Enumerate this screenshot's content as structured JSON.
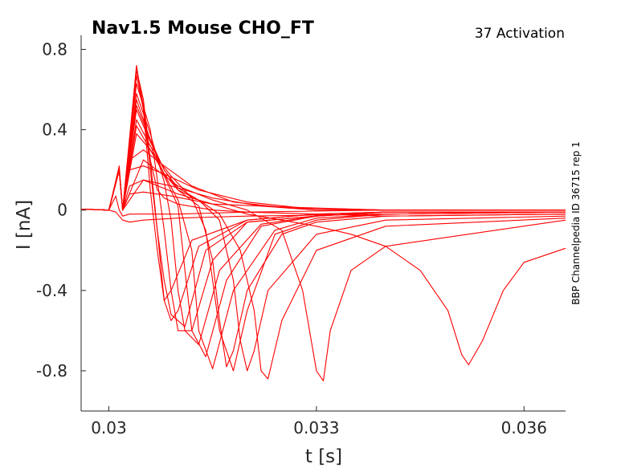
{
  "chart_data": {
    "type": "line",
    "title": "Nav1.5  Mouse  CHO_FT",
    "subtitle": "37  Activation",
    "side_note": "BBP Channelpedia ID 36715 rep 1",
    "xlabel": "t [s]",
    "ylabel": "I [nA]",
    "xlim": [
      0.0296,
      0.0366
    ],
    "ylim": [
      -1.0,
      0.87
    ],
    "xticks": [
      0.03,
      0.033,
      0.036
    ],
    "xtick_labels": [
      "0.03",
      "0.033",
      "0.036"
    ],
    "yticks": [
      0.8,
      0.4,
      0,
      -0.4,
      -0.8
    ],
    "ytick_labels": [
      "0.8",
      "0.4",
      "0",
      "-0.4",
      "-0.8"
    ],
    "series_color": "#ff0000",
    "grid": false,
    "series": [
      {
        "x": [
          0.0296,
          0.03,
          0.0301,
          0.03015,
          0.0302,
          0.0303,
          0.0305,
          0.031,
          0.032,
          0.034,
          0.0366
        ],
        "y": [
          0.005,
          0.0,
          -0.01,
          -0.03,
          -0.05,
          -0.06,
          -0.05,
          -0.04,
          -0.03,
          -0.02,
          -0.01
        ]
      },
      {
        "x": [
          0.0296,
          0.03,
          0.0301,
          0.03015,
          0.0302,
          0.0303,
          0.0305,
          0.031,
          0.032,
          0.034,
          0.0366
        ],
        "y": [
          0.005,
          0.0,
          0.07,
          0.0,
          -0.03,
          -0.02,
          -0.02,
          -0.02,
          -0.01,
          0.0,
          0.0
        ]
      },
      {
        "x": [
          0.0296,
          0.03,
          0.03015,
          0.0302,
          0.0303,
          0.0305,
          0.0309,
          0.0315,
          0.0322,
          0.033,
          0.034,
          0.0366
        ],
        "y": [
          0.005,
          0.0,
          0.2,
          0.0,
          0.08,
          0.09,
          0.07,
          0.03,
          0.02,
          0.01,
          0.0,
          0.0
        ]
      },
      {
        "x": [
          0.0296,
          0.03,
          0.03015,
          0.0302,
          0.0303,
          0.0305,
          0.0309,
          0.0315,
          0.0322,
          0.033,
          0.034,
          0.0366
        ],
        "y": [
          0.005,
          0.0,
          0.22,
          0.0,
          0.12,
          0.15,
          0.12,
          0.06,
          0.02,
          0.0,
          0.0,
          0.0
        ]
      },
      {
        "x": [
          0.0296,
          0.03,
          0.03015,
          0.0302,
          0.0303,
          0.0305,
          0.0308,
          0.0313,
          0.032,
          0.0328,
          0.034,
          0.0366
        ],
        "y": [
          0.005,
          0.0,
          0.2,
          0.0,
          0.2,
          0.22,
          0.18,
          0.1,
          0.04,
          0.01,
          0.0,
          0.0
        ]
      },
      {
        "x": [
          0.0296,
          0.03,
          0.03015,
          0.0302,
          0.0303,
          0.0305,
          0.0308,
          0.0312,
          0.0318,
          0.0326,
          0.034,
          0.0366
        ],
        "y": [
          0.005,
          0.0,
          0.2,
          0.0,
          0.25,
          0.3,
          0.22,
          0.12,
          0.04,
          0.01,
          0.0,
          0.0
        ]
      },
      {
        "x": [
          0.0296,
          0.03,
          0.03015,
          0.0302,
          0.0304,
          0.0306,
          0.0309,
          0.0312,
          0.0314,
          0.0316,
          0.0318,
          0.032,
          0.0324,
          0.033,
          0.034,
          0.0366
        ],
        "y": [
          0.005,
          0.0,
          0.2,
          0.0,
          0.38,
          0.3,
          0.17,
          0.06,
          -0.1,
          -0.6,
          -0.8,
          -0.5,
          -0.12,
          -0.05,
          -0.02,
          -0.01
        ]
      },
      {
        "x": [
          0.0296,
          0.03,
          0.03015,
          0.0302,
          0.0304,
          0.0306,
          0.0308,
          0.031,
          0.0312,
          0.0313,
          0.0315,
          0.0318,
          0.0324,
          0.033,
          0.034,
          0.0366
        ],
        "y": [
          0.005,
          0.0,
          0.2,
          0.0,
          0.45,
          0.32,
          0.18,
          0.05,
          -0.2,
          -0.6,
          -0.79,
          -0.4,
          -0.1,
          -0.04,
          -0.02,
          -0.01
        ]
      },
      {
        "x": [
          0.0296,
          0.03,
          0.03015,
          0.0302,
          0.0304,
          0.0306,
          0.0308,
          0.031,
          0.0311,
          0.0312,
          0.0314,
          0.0317,
          0.0322,
          0.033,
          0.034,
          0.0366
        ],
        "y": [
          0.005,
          0.0,
          0.2,
          0.0,
          0.52,
          0.35,
          0.17,
          0.02,
          -0.3,
          -0.6,
          -0.73,
          -0.35,
          -0.08,
          -0.03,
          -0.01,
          -0.01
        ]
      },
      {
        "x": [
          0.0296,
          0.03,
          0.03015,
          0.0302,
          0.0304,
          0.0306,
          0.0308,
          0.0309,
          0.031,
          0.0311,
          0.0313,
          0.0316,
          0.0322,
          0.033,
          0.034,
          0.0366
        ],
        "y": [
          0.005,
          0.0,
          0.2,
          0.0,
          0.58,
          0.38,
          0.14,
          -0.05,
          -0.4,
          -0.6,
          -0.67,
          -0.3,
          -0.07,
          -0.03,
          -0.01,
          -0.01
        ]
      },
      {
        "x": [
          0.0296,
          0.03,
          0.03015,
          0.0302,
          0.0304,
          0.0306,
          0.0307,
          0.0308,
          0.0309,
          0.031,
          0.0312,
          0.0315,
          0.032,
          0.033,
          0.034,
          0.0366
        ],
        "y": [
          0.005,
          0.0,
          0.2,
          0.0,
          0.63,
          0.4,
          0.15,
          -0.1,
          -0.4,
          -0.6,
          -0.6,
          -0.25,
          -0.06,
          -0.03,
          -0.01,
          -0.01
        ]
      },
      {
        "x": [
          0.0296,
          0.03,
          0.03015,
          0.0302,
          0.0304,
          0.0305,
          0.0306,
          0.0307,
          0.0308,
          0.0309,
          0.0311,
          0.0314,
          0.032,
          0.033,
          0.034,
          0.0366
        ],
        "y": [
          0.005,
          0.0,
          0.2,
          0.0,
          0.67,
          0.5,
          0.25,
          -0.1,
          -0.35,
          -0.52,
          -0.58,
          -0.2,
          -0.06,
          -0.03,
          -0.01,
          -0.01
        ]
      },
      {
        "x": [
          0.0296,
          0.03,
          0.03015,
          0.0302,
          0.0304,
          0.0305,
          0.0306,
          0.0307,
          0.0308,
          0.0309,
          0.031,
          0.0313,
          0.032,
          0.033,
          0.034,
          0.0366
        ],
        "y": [
          0.005,
          0.0,
          0.2,
          0.0,
          0.7,
          0.52,
          0.2,
          -0.1,
          -0.45,
          -0.55,
          -0.5,
          -0.18,
          -0.05,
          -0.02,
          -0.01,
          -0.01
        ]
      },
      {
        "x": [
          0.0296,
          0.03,
          0.03015,
          0.0302,
          0.0304,
          0.0305,
          0.0306,
          0.0307,
          0.0308,
          0.0309,
          0.0312,
          0.032,
          0.033,
          0.034,
          0.0366
        ],
        "y": [
          0.005,
          0.0,
          0.2,
          0.0,
          0.72,
          0.5,
          0.1,
          -0.2,
          -0.45,
          -0.4,
          -0.15,
          -0.05,
          -0.02,
          -0.01,
          -0.01
        ]
      },
      {
        "x": [
          0.0296,
          0.03,
          0.03015,
          0.0302,
          0.0304,
          0.0305,
          0.0306,
          0.0307,
          0.0308,
          0.031,
          0.0315,
          0.032,
          0.033,
          0.034,
          0.0366
        ],
        "y": [
          0.005,
          0.0,
          0.2,
          0.0,
          0.7,
          0.55,
          0.25,
          0.1,
          0.06,
          0.03,
          0.0,
          -0.01,
          -0.02,
          -0.03,
          -0.02
        ]
      },
      {
        "x": [
          0.0296,
          0.03,
          0.03015,
          0.0302,
          0.0304,
          0.0306,
          0.0308,
          0.031,
          0.0313,
          0.0316,
          0.0319,
          0.0321,
          0.0322,
          0.0323,
          0.0325,
          0.033,
          0.034,
          0.0366
        ],
        "y": [
          0.005,
          0.0,
          0.2,
          0.0,
          0.55,
          0.35,
          0.2,
          0.1,
          0.05,
          -0.02,
          -0.2,
          -0.5,
          -0.8,
          -0.84,
          -0.55,
          -0.2,
          -0.08,
          -0.04
        ]
      },
      {
        "x": [
          0.0296,
          0.03,
          0.03015,
          0.0302,
          0.0304,
          0.0306,
          0.0308,
          0.031,
          0.0313,
          0.0316,
          0.0318,
          0.0319,
          0.032,
          0.0321,
          0.0323,
          0.033,
          0.034,
          0.0366
        ],
        "y": [
          0.005,
          0.0,
          0.2,
          0.0,
          0.5,
          0.34,
          0.2,
          0.11,
          0.05,
          -0.05,
          -0.35,
          -0.65,
          -0.8,
          -0.7,
          -0.4,
          -0.12,
          -0.05,
          -0.03
        ]
      },
      {
        "x": [
          0.0296,
          0.03,
          0.03015,
          0.0302,
          0.0304,
          0.0306,
          0.0308,
          0.031,
          0.0313,
          0.0315,
          0.0316,
          0.0317,
          0.0318,
          0.032,
          0.0325,
          0.033,
          0.034,
          0.0366
        ],
        "y": [
          0.005,
          0.0,
          0.2,
          0.0,
          0.42,
          0.3,
          0.18,
          0.1,
          0.02,
          -0.25,
          -0.55,
          -0.78,
          -0.7,
          -0.4,
          -0.12,
          -0.06,
          -0.03,
          -0.02
        ]
      },
      {
        "x": [
          0.0296,
          0.03,
          0.03015,
          0.0302,
          0.0305,
          0.031,
          0.0315,
          0.032,
          0.0325,
          0.0328,
          0.033,
          0.0331,
          0.0332,
          0.0335,
          0.034,
          0.0366
        ],
        "y": [
          0.005,
          0.0,
          0.2,
          0.0,
          0.25,
          0.12,
          0.05,
          0.0,
          -0.1,
          -0.4,
          -0.8,
          -0.85,
          -0.6,
          -0.3,
          -0.18,
          -0.05
        ]
      },
      {
        "x": [
          0.0296,
          0.03,
          0.03015,
          0.0302,
          0.0305,
          0.031,
          0.0315,
          0.032,
          0.0325,
          0.033,
          0.0335,
          0.034,
          0.0345,
          0.0349,
          0.0351,
          0.0352,
          0.0354,
          0.0357,
          0.036,
          0.0366
        ],
        "y": [
          0.005,
          0.0,
          0.2,
          0.0,
          0.15,
          0.08,
          0.03,
          -0.02,
          -0.05,
          -0.08,
          -0.12,
          -0.18,
          -0.3,
          -0.5,
          -0.72,
          -0.77,
          -0.65,
          -0.4,
          -0.26,
          -0.19
        ]
      }
    ]
  }
}
